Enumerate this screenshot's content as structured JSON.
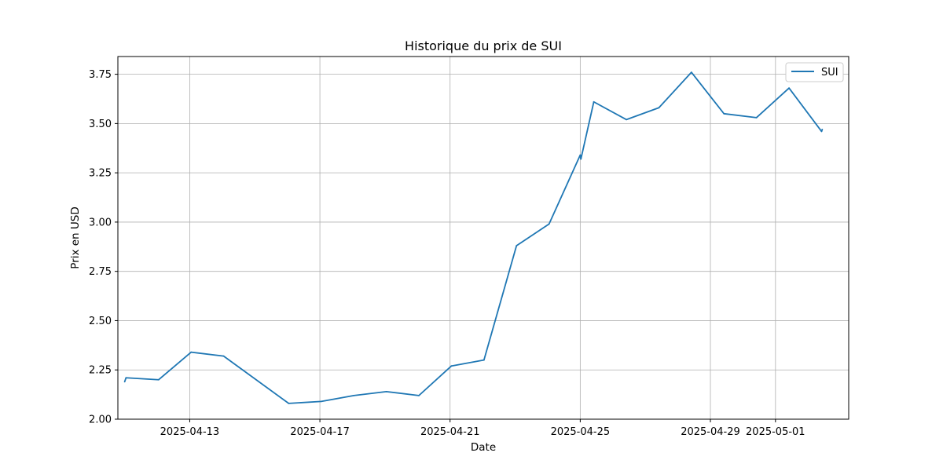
{
  "chart_data": {
    "type": "line",
    "title": "Historique du prix de SUI",
    "xlabel": "Date",
    "ylabel": "Prix en USD",
    "x_tick_labels": [
      "2025-04-13",
      "2025-04-17",
      "2025-04-21",
      "2025-04-25",
      "2025-04-29",
      "2025-05-01"
    ],
    "y_tick_labels": [
      "2.00",
      "2.25",
      "2.50",
      "2.75",
      "3.00",
      "3.25",
      "3.50",
      "3.75"
    ],
    "ylim": [
      2.0,
      3.84
    ],
    "xlim": [
      "2025-04-10T19:00",
      "2025-05-03T06:00"
    ],
    "grid": true,
    "legend_position": "top-right",
    "series": [
      {
        "name": "SUI",
        "color": "#1f77b4",
        "points": [
          [
            "2025-04-11T00:00",
            2.19
          ],
          [
            "2025-04-11T01:00",
            2.21
          ],
          [
            "2025-04-12T01:00",
            2.2
          ],
          [
            "2025-04-13T01:00",
            2.34
          ],
          [
            "2025-04-14T01:00",
            2.32
          ],
          [
            "2025-04-16T01:00",
            2.08
          ],
          [
            "2025-04-17T01:00",
            2.09
          ],
          [
            "2025-04-18T01:00",
            2.12
          ],
          [
            "2025-04-19T01:00",
            2.14
          ],
          [
            "2025-04-20T01:00",
            2.12
          ],
          [
            "2025-04-21T01:00",
            2.27
          ],
          [
            "2025-04-22T01:00",
            2.3
          ],
          [
            "2025-04-23T01:00",
            2.88
          ],
          [
            "2025-04-24T01:00",
            2.99
          ],
          [
            "2025-04-25T00:00",
            3.34
          ],
          [
            "2025-04-25T00:30",
            3.32
          ],
          [
            "2025-04-25T10:00",
            3.61
          ],
          [
            "2025-04-26T10:00",
            3.52
          ],
          [
            "2025-04-27T10:00",
            3.58
          ],
          [
            "2025-04-28T10:00",
            3.76
          ],
          [
            "2025-04-29T10:00",
            3.55
          ],
          [
            "2025-04-30T10:00",
            3.53
          ],
          [
            "2025-05-01T10:00",
            3.68
          ],
          [
            "2025-05-02T10:00",
            3.46
          ],
          [
            "2025-05-02T10:30",
            3.47
          ]
        ]
      }
    ]
  }
}
